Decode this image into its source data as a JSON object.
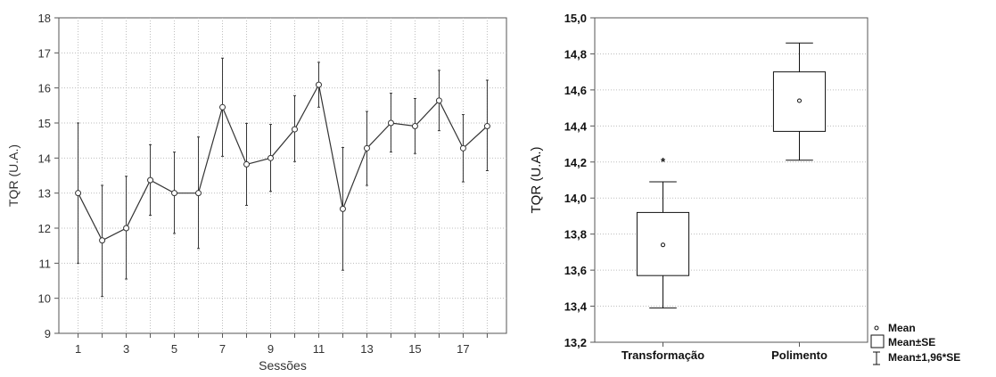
{
  "chart_data": [
    {
      "type": "line",
      "xlabel": "Sessões",
      "ylabel": "TQR (U.A.)",
      "xlim": [
        0.2,
        18.8
      ],
      "ylim": [
        9,
        18
      ],
      "x_tick_labels": [
        "1",
        "3",
        "5",
        "7",
        "9",
        "11",
        "13",
        "15",
        "17"
      ],
      "y_tick_labels": [
        "9",
        "10",
        "11",
        "12",
        "13",
        "14",
        "15",
        "16",
        "17",
        "18"
      ],
      "grid": true,
      "series": [
        {
          "x": [
            1,
            2,
            3,
            4,
            5,
            6,
            7,
            8,
            9,
            10,
            11,
            12,
            13,
            14,
            15,
            16,
            17,
            18
          ],
          "mean": [
            13.0,
            11.65,
            12.0,
            13.37,
            13.0,
            13.0,
            15.45,
            13.82,
            14.0,
            14.82,
            16.09,
            12.55,
            14.28,
            15.0,
            14.91,
            15.64,
            14.28,
            14.91
          ],
          "lower": [
            11.0,
            10.05,
            10.55,
            12.37,
            11.85,
            11.42,
            14.05,
            12.65,
            13.05,
            13.9,
            15.45,
            10.8,
            13.22,
            14.17,
            14.13,
            14.78,
            13.32,
            13.64
          ],
          "upper": [
            15.0,
            13.22,
            13.48,
            14.38,
            14.17,
            14.6,
            16.85,
            14.99,
            14.96,
            15.78,
            16.73,
            14.3,
            15.33,
            15.85,
            15.7,
            16.5,
            15.24,
            16.22
          ]
        }
      ]
    },
    {
      "type": "box",
      "ylabel": "TQR (U.A.)",
      "ylim": [
        13.2,
        15.0
      ],
      "y_tick_labels": [
        "13,2",
        "13,4",
        "13,6",
        "13,8",
        "14,0",
        "14,2",
        "14,4",
        "14,6",
        "14,8",
        "15,0"
      ],
      "grid": true,
      "categories": [
        "Transformação",
        "Polimento"
      ],
      "groups": [
        {
          "mean": 13.74,
          "se_low": 13.57,
          "se_high": 13.92,
          "ci_low": 13.39,
          "ci_high": 14.09,
          "annotation": "*"
        },
        {
          "mean": 14.54,
          "se_low": 14.37,
          "se_high": 14.7,
          "ci_low": 14.21,
          "ci_high": 14.86,
          "annotation": ""
        }
      ],
      "legend": {
        "position": "bottom-right-outside",
        "items": [
          "Mean",
          "Mean±SE",
          "Mean±1,96*SE"
        ]
      }
    }
  ]
}
